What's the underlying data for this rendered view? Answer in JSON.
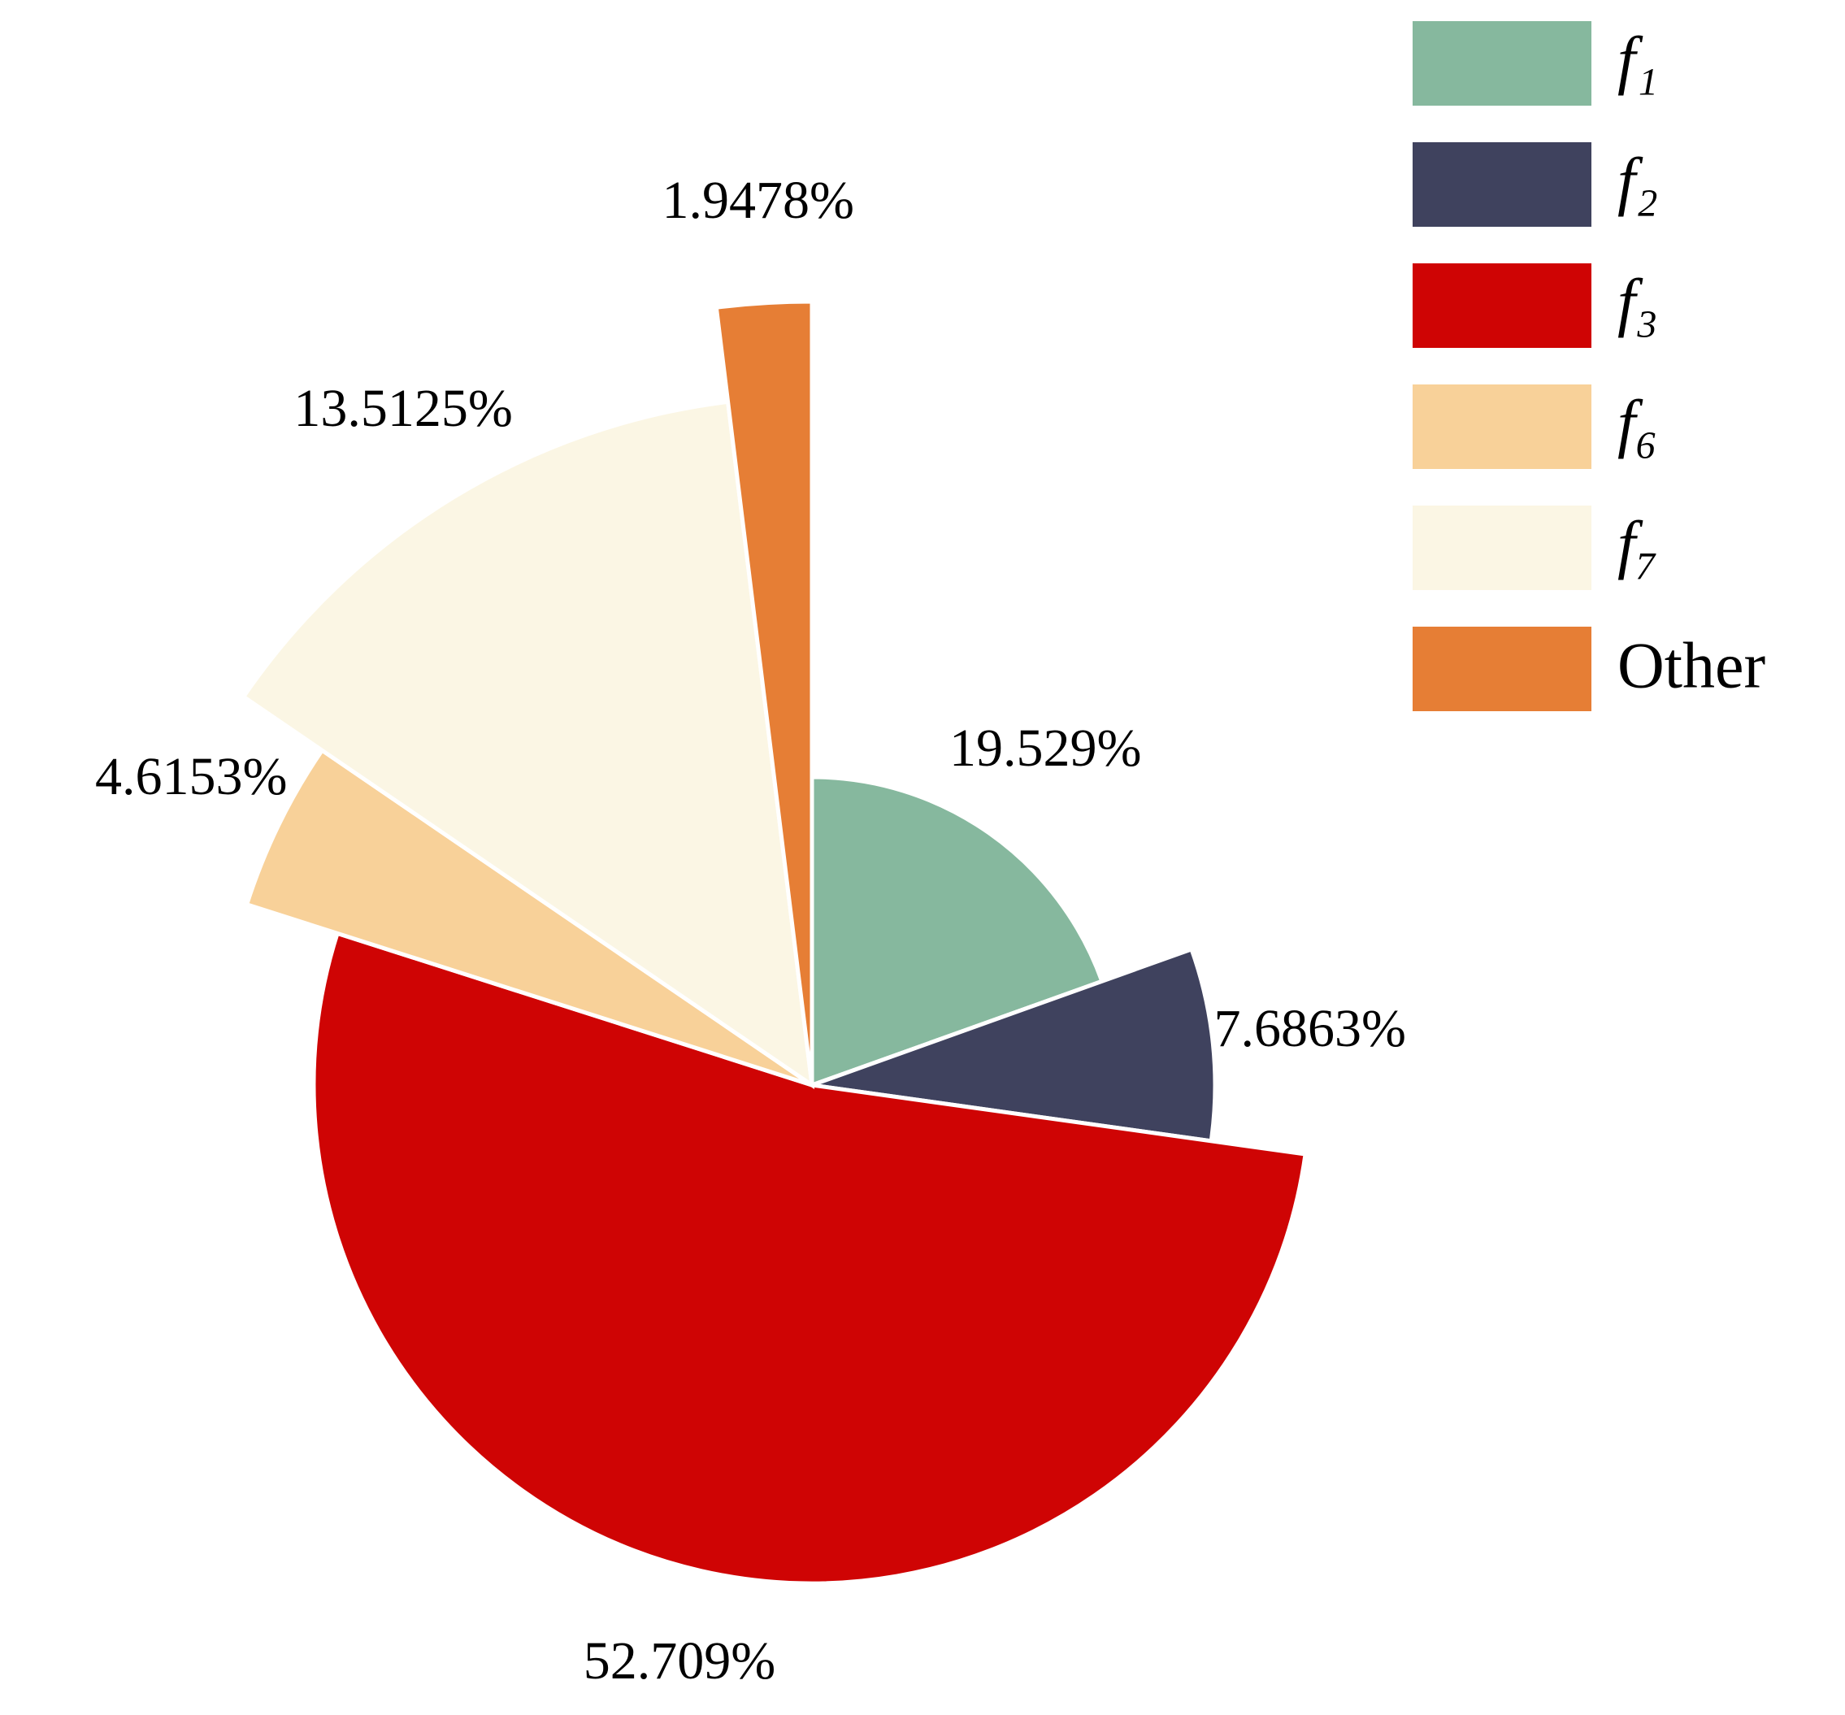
{
  "chart_data": {
    "type": "pie",
    "categories": [
      "f₁",
      "f₂",
      "f₃",
      "f₆",
      "f₇",
      "Other"
    ],
    "values": [
      19.529,
      7.6863,
      52.709,
      4.6153,
      13.5125,
      1.9478
    ],
    "value_labels": [
      "19.529%",
      "7.6863%",
      "52.709%",
      "4.6153%",
      "13.5125%",
      "1.9478%"
    ],
    "colors": [
      "#86b89e",
      "#3f425e",
      "#cf0404",
      "#f8d199",
      "#fbf6e4",
      "#e67e35"
    ],
    "legend": "upper right"
  }
}
